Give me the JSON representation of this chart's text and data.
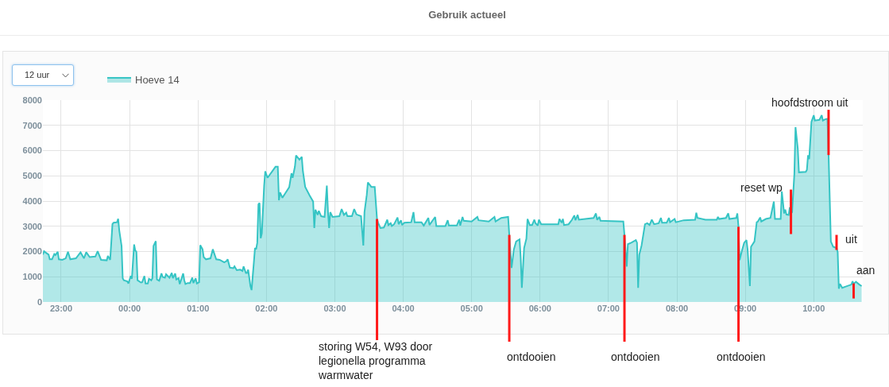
{
  "chart_data": {
    "type": "area",
    "title": "Gebruik actueel",
    "annotations": [
      "12 uur",
      {
        "text": "storing W54, W93 door legionella programma warmwater",
        "x": "2000-01-02T03:37",
        "y": 3290
      },
      {
        "text": "ontdooien",
        "x": "2000-01-02T05:33",
        "y": 2660
      },
      {
        "text": "ontdooien",
        "x": "2000-01-02T07:14",
        "y": 2660
      },
      {
        "text": "ontdooien",
        "x": "2000-01-02T08:54",
        "y": 2980
      },
      {
        "text": "reset wp",
        "x": "2000-01-02T09:40",
        "y": 3510
      },
      {
        "text": "hoofdstroom uit",
        "x": "2000-01-02T10:13",
        "y": 5870
      },
      {
        "text": "uit",
        "x": "2000-01-02T10:20",
        "y": 2140
      },
      {
        "text": "aan",
        "x": "2000-01-02T10:35",
        "y": 720
      }
    ],
    "x": [
      "2000-01-01T22:44",
      "2000-01-01T22:45",
      "2000-01-01T22:47",
      "2000-01-01T22:49",
      "2000-01-01T22:50",
      "2000-01-01T22:52",
      "2000-01-01T22:54",
      "2000-01-01T22:55",
      "2000-01-01T22:57",
      "2000-01-01T22:58",
      "2000-01-01T23:01",
      "2000-01-01T23:04",
      "2000-01-01T23:06",
      "2000-01-01T23:08",
      "2000-01-01T23:13",
      "2000-01-01T23:17",
      "2000-01-01T23:20",
      "2000-01-01T23:22",
      "2000-01-01T23:25",
      "2000-01-01T23:30",
      "2000-01-01T23:32",
      "2000-01-01T23:35",
      "2000-01-01T23:40",
      "2000-01-01T23:41",
      "2000-01-01T23:43",
      "2000-01-01T23:45",
      "2000-01-01T23:46",
      "2000-01-01T23:49",
      "2000-01-01T23:50",
      "2000-01-01T23:51",
      "2000-01-01T23:53",
      "2000-01-01T23:54",
      "2000-01-01T23:55",
      "2000-01-01T23:58",
      "2000-01-01T23:59",
      "2000-01-02T00:01",
      "2000-01-02T00:02",
      "2000-01-02T00:04",
      "2000-01-02T00:05",
      "2000-01-02T00:06",
      "2000-01-02T00:07",
      "2000-01-02T00:10",
      "2000-01-02T00:11",
      "2000-01-02T00:13",
      "2000-01-02T00:14",
      "2000-01-02T00:16",
      "2000-01-02T00:17",
      "2000-01-02T00:19",
      "2000-01-02T00:20",
      "2000-01-02T00:21",
      "2000-01-02T00:23",
      "2000-01-02T00:24",
      "2000-01-02T00:26",
      "2000-01-02T00:28",
      "2000-01-02T00:29",
      "2000-01-02T00:31",
      "2000-01-02T00:32",
      "2000-01-02T00:35",
      "2000-01-02T00:37",
      "2000-01-02T00:38",
      "2000-01-02T00:40",
      "2000-01-02T00:41",
      "2000-01-02T00:43",
      "2000-01-02T00:44",
      "2000-01-02T00:47",
      "2000-01-02T00:48",
      "2000-01-02T00:49",
      "2000-01-02T00:51",
      "2000-01-02T00:53",
      "2000-01-02T00:55",
      "2000-01-02T00:56",
      "2000-01-02T00:58",
      "2000-01-02T00:59",
      "2000-01-02T01:01",
      "2000-01-02T01:02",
      "2000-01-02T01:04",
      "2000-01-02T01:05",
      "2000-01-02T01:07",
      "2000-01-02T01:11",
      "2000-01-02T01:13",
      "2000-01-02T01:16",
      "2000-01-02T01:19",
      "2000-01-02T01:23",
      "2000-01-02T01:25",
      "2000-01-02T01:26",
      "2000-01-02T01:28",
      "2000-01-02T01:31",
      "2000-01-02T01:32",
      "2000-01-02T01:34",
      "2000-01-02T01:37",
      "2000-01-02T01:39",
      "2000-01-02T01:40",
      "2000-01-02T01:42",
      "2000-01-02T01:43",
      "2000-01-02T01:44",
      "2000-01-02T01:46",
      "2000-01-02T01:47",
      "2000-01-02T01:49",
      "2000-01-02T01:50",
      "2000-01-02T01:51",
      "2000-01-02T01:52",
      "2000-01-02T01:53",
      "2000-01-02T01:54",
      "2000-01-02T01:55",
      "2000-01-02T01:56",
      "2000-01-02T01:58",
      "2000-01-02T01:59",
      "2000-01-02T02:01",
      "2000-01-02T02:08",
      "2000-01-02T02:10",
      "2000-01-02T02:11",
      "2000-01-02T02:12",
      "2000-01-02T02:14",
      "2000-01-02T02:17",
      "2000-01-02T02:20",
      "2000-01-02T02:22",
      "2000-01-02T02:23",
      "2000-01-02T02:25",
      "2000-01-02T02:26",
      "2000-01-02T02:29",
      "2000-01-02T02:31",
      "2000-01-02T02:32",
      "2000-01-02T02:34",
      "2000-01-02T02:38",
      "2000-01-02T02:41",
      "2000-01-02T02:42",
      "2000-01-02T02:43",
      "2000-01-02T02:45",
      "2000-01-02T02:46",
      "2000-01-02T02:48",
      "2000-01-02T02:51",
      "2000-01-02T02:53",
      "2000-01-02T02:54",
      "2000-01-02T02:55",
      "2000-01-02T02:56",
      "2000-01-02T02:58",
      "2000-01-02T03:04",
      "2000-01-02T03:06",
      "2000-01-02T03:08",
      "2000-01-02T03:10",
      "2000-01-02T03:11",
      "2000-01-02T03:15",
      "2000-01-02T03:17",
      "2000-01-02T03:19",
      "2000-01-02T03:23",
      "2000-01-02T03:25",
      "2000-01-02T03:26",
      "2000-01-02T03:28",
      "2000-01-02T03:29",
      "2000-01-02T03:32",
      "2000-01-02T03:35",
      "2000-01-02T03:37",
      "2000-01-02T03:38",
      "2000-01-02T03:40",
      "2000-01-02T03:43",
      "2000-01-02T03:46",
      "2000-01-02T03:47",
      "2000-01-02T03:49",
      "2000-01-02T03:50",
      "2000-01-02T03:52",
      "2000-01-02T03:55",
      "2000-01-02T03:56",
      "2000-01-02T03:58",
      "2000-01-02T03:59",
      "2000-01-02T04:01",
      "2000-01-02T04:07",
      "2000-01-02T04:09",
      "2000-01-02T04:10",
      "2000-01-02T04:16",
      "2000-01-02T04:18",
      "2000-01-02T04:22",
      "2000-01-02T04:23",
      "2000-01-02T04:28",
      "2000-01-02T04:29",
      "2000-01-02T04:37",
      "2000-01-02T04:39",
      "2000-01-02T04:40",
      "2000-01-02T04:47",
      "2000-01-02T04:49",
      "2000-01-02T04:50",
      "2000-01-02T04:52",
      "2000-01-02T04:53",
      "2000-01-02T05:00",
      "2000-01-02T05:05",
      "2000-01-02T05:06",
      "2000-01-02T05:15",
      "2000-01-02T05:20",
      "2000-01-02T05:21",
      "2000-01-02T05:26",
      "2000-01-02T05:32",
      "2000-01-02T05:33",
      "2000-01-02T05:35",
      "2000-01-02T05:37",
      "2000-01-02T05:39",
      "2000-01-02T05:42",
      "2000-01-02T05:43",
      "2000-01-02T05:44",
      "2000-01-02T05:46",
      "2000-01-02T05:48",
      "2000-01-02T05:49",
      "2000-01-02T05:51",
      "2000-01-02T05:53",
      "2000-01-02T05:55",
      "2000-01-02T05:56",
      "2000-01-02T05:58",
      "2000-01-02T05:59",
      "2000-01-02T06:01",
      "2000-01-02T06:16",
      "2000-01-02T06:17",
      "2000-01-02T06:19",
      "2000-01-02T06:20",
      "2000-01-02T06:21",
      "2000-01-02T06:25",
      "2000-01-02T06:28",
      "2000-01-02T06:30",
      "2000-01-02T06:31",
      "2000-01-02T06:33",
      "2000-01-02T06:34",
      "2000-01-02T06:47",
      "2000-01-02T06:49",
      "2000-01-02T06:50",
      "2000-01-02T06:52",
      "2000-01-02T06:53",
      "2000-01-02T07:13",
      "2000-01-02T07:14",
      "2000-01-02T07:16",
      "2000-01-02T07:17",
      "2000-01-02T07:20",
      "2000-01-02T07:24",
      "2000-01-02T07:25",
      "2000-01-02T07:26",
      "2000-01-02T07:27",
      "2000-01-02T07:29",
      "2000-01-02T07:32",
      "2000-01-02T07:34",
      "2000-01-02T07:36",
      "2000-01-02T07:38",
      "2000-01-02T07:40",
      "2000-01-02T07:44",
      "2000-01-02T07:46",
      "2000-01-02T07:47",
      "2000-01-02T07:51",
      "2000-01-02T07:53",
      "2000-01-02T07:54",
      "2000-01-02T07:58",
      "2000-01-02T07:59",
      "2000-01-02T08:06",
      "2000-01-02T08:16",
      "2000-01-02T08:17",
      "2000-01-02T08:18",
      "2000-01-02T08:25",
      "2000-01-02T08:35",
      "2000-01-02T08:36",
      "2000-01-02T08:37",
      "2000-01-02T08:43",
      "2000-01-02T08:45",
      "2000-01-02T08:46",
      "2000-01-02T08:52",
      "2000-01-02T08:53",
      "2000-01-02T08:54",
      "2000-01-02T08:55",
      "2000-01-02T08:57",
      "2000-01-02T08:59",
      "2000-01-02T09:01",
      "2000-01-02T09:02",
      "2000-01-02T09:04",
      "2000-01-02T09:05",
      "2000-01-02T09:08",
      "2000-01-02T09:10",
      "2000-01-02T09:11",
      "2000-01-02T09:13",
      "2000-01-02T09:14",
      "2000-01-02T09:18",
      "2000-01-02T09:22",
      "2000-01-02T09:25",
      "2000-01-02T09:26",
      "2000-01-02T09:31",
      "2000-01-02T09:32",
      "2000-01-02T09:34",
      "2000-01-02T09:35",
      "2000-01-02T09:36",
      "2000-01-02T09:38",
      "2000-01-02T09:39",
      "2000-01-02T09:40",
      "2000-01-02T09:41",
      "2000-01-02T09:43",
      "2000-01-02T09:44",
      "2000-01-02T09:46",
      "2000-01-02T09:47",
      "2000-01-02T09:53",
      "2000-01-02T09:54",
      "2000-01-02T09:55",
      "2000-01-02T09:56",
      "2000-01-02T09:58",
      "2000-01-02T10:00",
      "2000-01-02T10:01",
      "2000-01-02T10:05",
      "2000-01-02T10:07",
      "2000-01-02T10:08",
      "2000-01-02T10:10",
      "2000-01-02T10:12",
      "2000-01-02T10:13",
      "2000-01-02T10:15",
      "2000-01-02T10:17",
      "2000-01-02T10:20",
      "2000-01-02T10:21",
      "2000-01-02T10:22",
      "2000-01-02T10:23",
      "2000-01-02T10:25",
      "2000-01-02T10:28",
      "2000-01-02T10:33",
      "2000-01-02T10:34",
      "2000-01-02T10:35",
      "2000-01-02T10:37",
      "2000-01-02T10:40",
      "2000-01-02T10:42"
    ],
    "series": [
      {
        "name": "Hoeve 14",
        "color": "#35c4c4",
        "values": [
          1880,
          2010,
          1940,
          1880,
          1690,
          1690,
          1900,
          1860,
          1990,
          1690,
          1670,
          1730,
          1990,
          1690,
          1730,
          1970,
          1730,
          1970,
          1780,
          1800,
          2010,
          1670,
          1650,
          1830,
          1670,
          3090,
          3140,
          3160,
          3300,
          2820,
          2220,
          940,
          860,
          820,
          730,
          1030,
          920,
          2280,
          2040,
          1990,
          860,
          770,
          780,
          1030,
          730,
          730,
          920,
          860,
          940,
          2220,
          2410,
          890,
          840,
          1130,
          990,
          960,
          1100,
          960,
          1150,
          940,
          1130,
          890,
          940,
          710,
          1130,
          860,
          710,
          750,
          750,
          960,
          750,
          940,
          730,
          780,
          2250,
          2090,
          1780,
          1690,
          1730,
          2090,
          1690,
          1670,
          1570,
          1620,
          1690,
          1360,
          1340,
          1410,
          1260,
          1280,
          1230,
          1410,
          1150,
          1150,
          1280,
          630,
          470,
          1570,
          2140,
          2090,
          2350,
          3870,
          3920,
          2530,
          2720,
          4600,
          5180,
          4920,
          5360,
          5360,
          4030,
          4340,
          4130,
          4340,
          4550,
          5100,
          4920,
          5360,
          5810,
          5640,
          5750,
          5190,
          4560,
          4210,
          3980,
          2930,
          3660,
          3450,
          3610,
          3400,
          3370,
          4610,
          3580,
          2930,
          3560,
          3370,
          3400,
          3680,
          3450,
          3540,
          3400,
          3400,
          3680,
          3470,
          3400,
          2240,
          3560,
          4240,
          4740,
          4560,
          4560,
          3290,
          3140,
          2930,
          2950,
          3260,
          3050,
          3120,
          3010,
          3080,
          3350,
          3080,
          3240,
          3050,
          3140,
          3160,
          3560,
          3160,
          3160,
          3030,
          3330,
          3050,
          3370,
          3010,
          3010,
          3240,
          3030,
          3030,
          3260,
          3030,
          3370,
          3220,
          3190,
          3370,
          3240,
          3190,
          3370,
          3190,
          3330,
          3370,
          2660,
          1350,
          2080,
          2400,
          2480,
          1770,
          560,
          2140,
          2510,
          3290,
          3050,
          3050,
          3260,
          3120,
          3030,
          3260,
          3080,
          3080,
          3290,
          3140,
          3290,
          3050,
          3080,
          3260,
          3430,
          3240,
          3450,
          3260,
          3330,
          3510,
          3260,
          3370,
          3220,
          3190,
          2660,
          1400,
          2290,
          2350,
          2450,
          2350,
          560,
          1870,
          2240,
          3080,
          3120,
          3050,
          3260,
          3080,
          3120,
          3330,
          3140,
          3140,
          3330,
          3160,
          3290,
          3160,
          3240,
          3260,
          3540,
          3330,
          3260,
          3260,
          3370,
          3290,
          3330,
          3510,
          3290,
          3330,
          3510,
          2980,
          1660,
          2030,
          2350,
          2450,
          2080,
          630,
          2190,
          2400,
          3160,
          3190,
          3350,
          3190,
          3290,
          3330,
          3980,
          3290,
          3290,
          4380,
          3510,
          3660,
          3470,
          3450,
          3750,
          3510,
          3560,
          5080,
          6930,
          6080,
          5140,
          5160,
          5240,
          5820,
          5660,
          7140,
          7400,
          7190,
          7220,
          7400,
          7190,
          7240,
          7260,
          5870,
          2400,
          2190,
          2140,
          1980,
          530,
          720,
          560,
          610,
          690,
          820,
          720,
          800,
          690,
          630
        ]
      }
    ],
    "xlim": [
      "2000-01-01T22:44",
      "2000-01-02T10:43"
    ],
    "xticks": [
      {
        "value": "2000-01-01T23:00",
        "label": "23:00"
      },
      {
        "value": "2000-01-02T00:00",
        "label": "00:00"
      },
      {
        "value": "2000-01-02T01:00",
        "label": "01:00"
      },
      {
        "value": "2000-01-02T02:00",
        "label": "02:00"
      },
      {
        "value": "2000-01-02T03:00",
        "label": "03:00"
      },
      {
        "value": "2000-01-02T04:00",
        "label": "04:00"
      },
      {
        "value": "2000-01-02T05:00",
        "label": "05:00"
      },
      {
        "value": "2000-01-02T06:00",
        "label": "06:00"
      },
      {
        "value": "2000-01-02T07:00",
        "label": "07:00"
      },
      {
        "value": "2000-01-02T08:00",
        "label": "08:00"
      },
      {
        "value": "2000-01-02T09:00",
        "label": "09:00"
      },
      {
        "value": "2000-01-02T10:00",
        "label": "10:00"
      }
    ],
    "ylim": [
      0,
      8000
    ],
    "yticks": [
      0,
      1000,
      2000,
      3000,
      4000,
      5000,
      6000,
      7000,
      8000
    ],
    "grid": true,
    "legend": "top left"
  }
}
